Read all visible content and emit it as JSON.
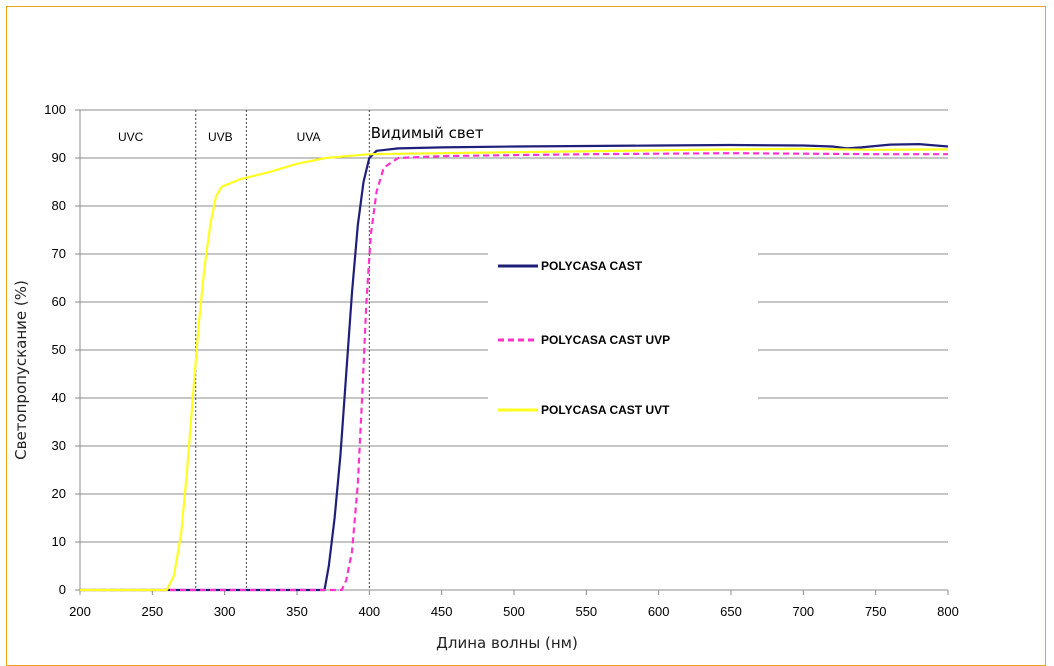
{
  "chart_data": {
    "type": "line",
    "xlabel": "Длина волны (нм)",
    "ylabel": "Светопропускание  (%)",
    "xlim": [
      200,
      800
    ],
    "ylim": [
      0,
      100
    ],
    "xticks": [
      200,
      250,
      300,
      350,
      400,
      450,
      500,
      550,
      600,
      650,
      700,
      750,
      800
    ],
    "yticks": [
      0,
      10,
      20,
      30,
      40,
      50,
      60,
      70,
      80,
      90,
      100
    ],
    "grid": "horizontal",
    "legend_position": "center",
    "regions": [
      {
        "label": "UVC",
        "x": 235
      },
      {
        "label": "UVB",
        "x": 297
      },
      {
        "label": "UVA",
        "x": 358
      },
      {
        "label": "Видимый свет",
        "x": 440
      }
    ],
    "dividers": [
      280,
      315,
      400
    ],
    "series": [
      {
        "name": "POLYCASA CAST",
        "color": "#1f1f7a",
        "dash": "solid",
        "points": [
          [
            200,
            0
          ],
          [
            369,
            0
          ],
          [
            372,
            5
          ],
          [
            376,
            15
          ],
          [
            380,
            28
          ],
          [
            384,
            45
          ],
          [
            388,
            62
          ],
          [
            392,
            76
          ],
          [
            396,
            85
          ],
          [
            400,
            90
          ],
          [
            405,
            91.5
          ],
          [
            420,
            92
          ],
          [
            450,
            92.2
          ],
          [
            500,
            92.4
          ],
          [
            550,
            92.5
          ],
          [
            600,
            92.6
          ],
          [
            650,
            92.7
          ],
          [
            700,
            92.6
          ],
          [
            720,
            92.4
          ],
          [
            730,
            92
          ],
          [
            740,
            92.2
          ],
          [
            760,
            92.8
          ],
          [
            780,
            92.9
          ],
          [
            800,
            92.4
          ]
        ]
      },
      {
        "name": "POLYCASA CAST UVP",
        "color": "#ff33cc",
        "dash": "dashed",
        "points": [
          [
            200,
            0
          ],
          [
            381,
            0
          ],
          [
            384,
            2
          ],
          [
            388,
            8
          ],
          [
            392,
            22
          ],
          [
            395,
            40
          ],
          [
            398,
            60
          ],
          [
            401,
            74
          ],
          [
            405,
            83
          ],
          [
            410,
            88
          ],
          [
            420,
            90
          ],
          [
            450,
            90.4
          ],
          [
            500,
            90.6
          ],
          [
            550,
            90.8
          ],
          [
            600,
            90.9
          ],
          [
            650,
            91
          ],
          [
            700,
            90.9
          ],
          [
            750,
            90.8
          ],
          [
            800,
            90.8
          ]
        ]
      },
      {
        "name": "POLYCASA CAST UVT",
        "color": "#ffff22",
        "dash": "solid",
        "points": [
          [
            200,
            0
          ],
          [
            260,
            0
          ],
          [
            265,
            3
          ],
          [
            270,
            12
          ],
          [
            274,
            25
          ],
          [
            278,
            40
          ],
          [
            282,
            55
          ],
          [
            286,
            67
          ],
          [
            290,
            76
          ],
          [
            294,
            82
          ],
          [
            298,
            84
          ],
          [
            310,
            85.5
          ],
          [
            330,
            87
          ],
          [
            350,
            88.8
          ],
          [
            370,
            90
          ],
          [
            400,
            90.8
          ],
          [
            450,
            91
          ],
          [
            500,
            91.2
          ],
          [
            550,
            91.4
          ],
          [
            600,
            91.6
          ],
          [
            650,
            91.8
          ],
          [
            700,
            91.9
          ],
          [
            750,
            91.7
          ],
          [
            800,
            91.8
          ]
        ]
      }
    ]
  }
}
